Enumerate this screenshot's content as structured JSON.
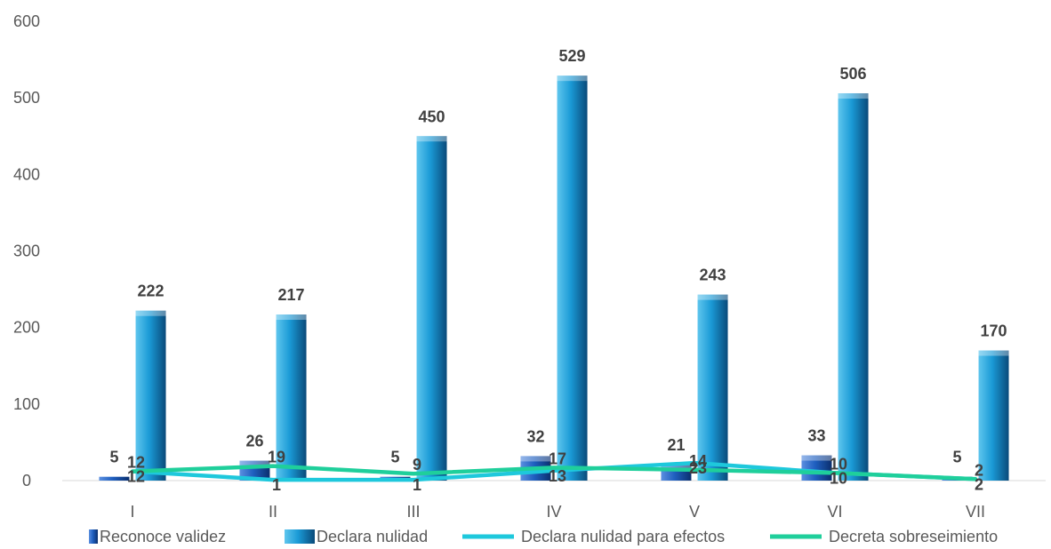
{
  "chart_data": {
    "type": "bar",
    "categories": [
      "I",
      "II",
      "III",
      "IV",
      "V",
      "VI",
      "VII"
    ],
    "ylim": [
      0,
      600
    ],
    "yticks": [
      0,
      100,
      200,
      300,
      400,
      500,
      600
    ],
    "grid": false,
    "legend_position": "bottom",
    "series": [
      {
        "name": "Reconoce validez",
        "kind": "bar",
        "color": "#1f5fbf",
        "values": [
          5,
          26,
          5,
          32,
          21,
          33,
          5
        ]
      },
      {
        "name": "Declara nulidad",
        "kind": "bar",
        "color": "#1a9ad6",
        "values": [
          222,
          217,
          450,
          529,
          243,
          506,
          170
        ]
      },
      {
        "name": "Declara nulidad para efectos",
        "kind": "line",
        "color": "#1ec8dc",
        "values": [
          12,
          1,
          1,
          13,
          23,
          10,
          2
        ]
      },
      {
        "name": "Decreta sobreseimiento",
        "kind": "line",
        "color": "#1fcf9b",
        "values": [
          12,
          19,
          9,
          17,
          14,
          10,
          2
        ]
      }
    ]
  }
}
